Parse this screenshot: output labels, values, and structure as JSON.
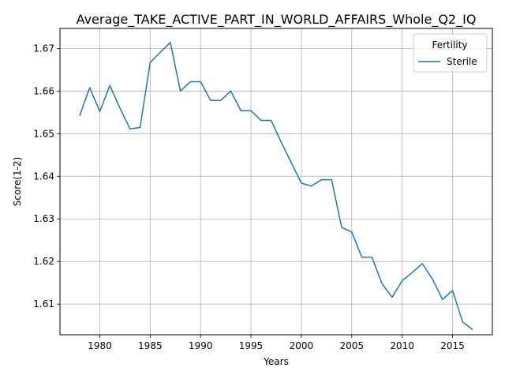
{
  "chart_data": {
    "type": "line",
    "title": "Average_TAKE_ACTIVE_PART_IN_WORLD_AFFAIRS_Whole_Q2_IQ",
    "xlabel": "Years",
    "ylabel": "Score(1-2)",
    "xlim": [
      1976.05,
      2018.95
    ],
    "ylim": [
      1.6028,
      1.6747
    ],
    "xticks": [
      1980,
      1985,
      1990,
      1995,
      2000,
      2005,
      2010,
      2015
    ],
    "yticks": [
      1.61,
      1.62,
      1.63,
      1.64,
      1.65,
      1.66,
      1.67
    ],
    "ytick_labels": [
      "1.61",
      "1.62",
      "1.63",
      "1.64",
      "1.65",
      "1.66",
      "1.67"
    ],
    "grid": true,
    "legend": {
      "title": "Fertility",
      "placement": "top-right"
    },
    "series": [
      {
        "name": "Sterile",
        "color": "#1f77b4",
        "x": [
          1978,
          1979,
          1980,
          1981,
          1982,
          1983,
          1984,
          1985,
          1986,
          1987,
          1988,
          1989,
          1990,
          1991,
          1992,
          1993,
          1994,
          1995,
          1996,
          1997,
          1998,
          1999,
          2000,
          2001,
          2002,
          2003,
          2004,
          2005,
          2006,
          2007,
          2008,
          2009,
          2010,
          2011,
          2012,
          2013,
          2014,
          2015,
          2016,
          2017
        ],
        "y": [
          1.6542,
          1.6608,
          1.6552,
          1.6613,
          1.656,
          1.6511,
          1.6515,
          1.6667,
          1.6691,
          1.6714,
          1.66,
          1.6622,
          1.6622,
          1.6578,
          1.6578,
          1.66,
          1.6554,
          1.6554,
          1.6531,
          1.6531,
          1.648,
          1.6432,
          1.6384,
          1.6377,
          1.6392,
          1.6392,
          1.628,
          1.6269,
          1.621,
          1.621,
          1.6148,
          1.6116,
          1.6155,
          1.6174,
          1.6195,
          1.6159,
          1.6111,
          1.6132,
          1.6058,
          1.604
        ]
      }
    ]
  }
}
